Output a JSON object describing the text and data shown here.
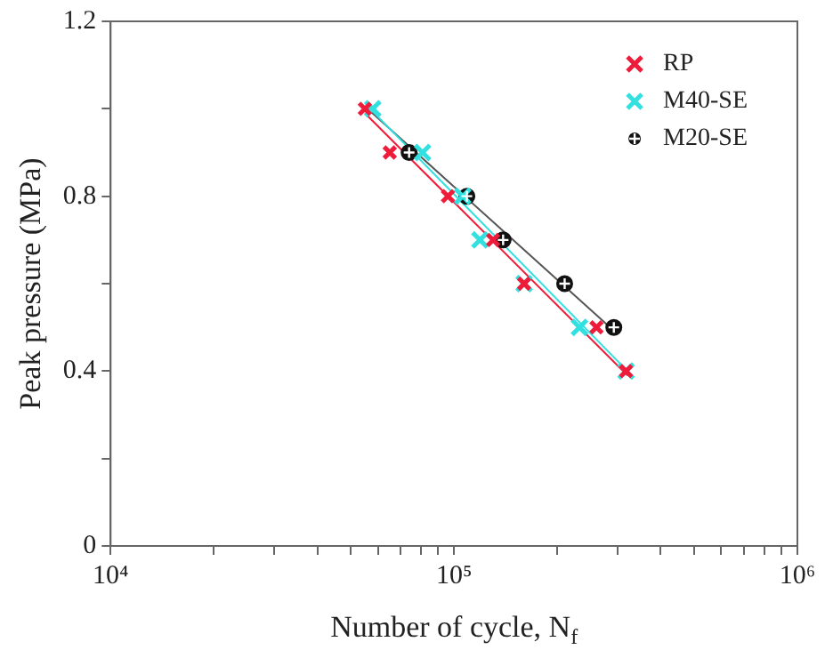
{
  "chart_data": {
    "type": "scatter",
    "xlabel": "Number of cycle, N$_{f}$",
    "ylabel": "Peak pressure (MPa)",
    "log": "x",
    "grid": false,
    "legend": "top right",
    "xlim": [
      10000,
      1000000
    ],
    "xticks": [
      {
        "value": 10000,
        "label": "10⁴"
      },
      {
        "value": 20000,
        "label": null
      },
      {
        "value": 30000,
        "label": null
      },
      {
        "value": 40000,
        "label": null
      },
      {
        "value": 50000,
        "label": null
      },
      {
        "value": 60000,
        "label": null
      },
      {
        "value": 70000,
        "label": null
      },
      {
        "value": 80000,
        "label": null
      },
      {
        "value": 90000,
        "label": null
      },
      {
        "value": 100000,
        "label": "10⁵"
      },
      {
        "value": 200000,
        "label": null
      },
      {
        "value": 300000,
        "label": null
      },
      {
        "value": 400000,
        "label": null
      },
      {
        "value": 500000,
        "label": null
      },
      {
        "value": 600000,
        "label": null
      },
      {
        "value": 700000,
        "label": null
      },
      {
        "value": 800000,
        "label": null
      },
      {
        "value": 900000,
        "label": null
      },
      {
        "value": 1000000,
        "label": "10⁶"
      }
    ],
    "ylim": [
      0,
      1.2
    ],
    "yticks": [
      0,
      {
        "value": 0.2,
        "label": null
      },
      0.4,
      {
        "value": 0.6,
        "label": null
      },
      0.8,
      {
        "value": 1.0,
        "label": null
      },
      1.2
    ],
    "series": [
      {
        "name": "RP",
        "color": "#ee1c3a",
        "marker": "cross",
        "x": [
          55000,
          65000,
          96000,
          130000,
          160000,
          260000,
          317000
        ],
        "values": [
          1.0,
          0.9,
          0.8,
          0.7,
          0.6,
          0.5,
          0.4
        ]
      },
      {
        "name": "M40-SE",
        "color": "#33e0e0",
        "marker": "cross",
        "x": [
          58000,
          81000,
          106000,
          119000,
          160000,
          232000,
          317000
        ],
        "values": [
          1.0,
          0.9,
          0.8,
          0.7,
          0.6,
          0.5,
          0.4
        ]
      },
      {
        "name": "M20-SE",
        "color": "#111111",
        "marker": "circle",
        "x": [
          74000,
          109000,
          139000,
          210000,
          292000
        ],
        "values": [
          0.9,
          0.8,
          0.7,
          0.6,
          0.5
        ]
      },
      {
        "type": "line",
        "color": "#ee1c3a",
        "x": [
          55000,
          320000
        ],
        "values": [
          0.99,
          0.39
        ]
      },
      {
        "type": "line",
        "color": "#33e0e0",
        "x": [
          57000,
          320000
        ],
        "values": [
          1.0,
          0.4
        ]
      },
      {
        "type": "line",
        "color": "#555555",
        "x": [
          56000,
          285000
        ],
        "values": [
          1.0,
          0.5
        ]
      }
    ]
  }
}
